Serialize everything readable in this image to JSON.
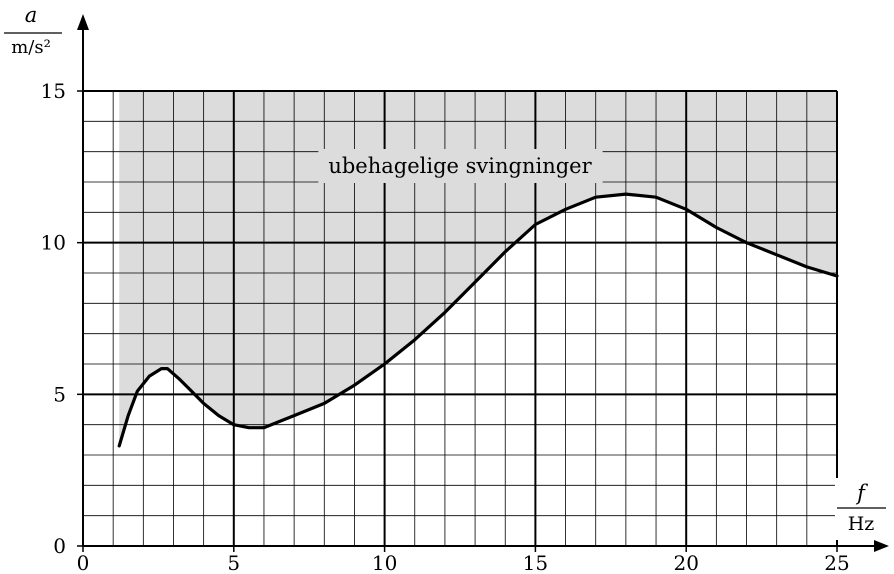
{
  "chart_data": {
    "type": "area",
    "xlabel": {
      "symbol": "f",
      "unit": "Hz"
    },
    "ylabel": {
      "symbol": "a",
      "unit": "m/s²"
    },
    "xlim": [
      0,
      25
    ],
    "ylim": [
      0,
      15
    ],
    "x_ticks": [
      0,
      5,
      10,
      15,
      20,
      25
    ],
    "y_ticks": [
      0,
      5,
      10,
      15
    ],
    "grid": true,
    "minor_step_x": 1,
    "minor_step_y": 1,
    "major_step": 5,
    "annotation": "ubehagelige svingninger",
    "shaded_region": "above curve, from f = 1.2 Hz to 25 Hz",
    "colors": {
      "shade": "#dcdcdc",
      "curve": "#000000",
      "grid": "#000000"
    },
    "series": [
      {
        "x": [
          1.2,
          1.5,
          1.8,
          2.2,
          2.6,
          2.8,
          3.2,
          3.6,
          4.0,
          4.5,
          5.0,
          5.5,
          6.0,
          6.5,
          7.0,
          8.0,
          9.0,
          10.0,
          11.0,
          12.0,
          13.0,
          14.0,
          15.0,
          16.0,
          17.0,
          18.0,
          19.0,
          20.0,
          21.0,
          22.0,
          23.0,
          24.0,
          25.0
        ],
        "y": [
          3.3,
          4.3,
          5.1,
          5.6,
          5.85,
          5.85,
          5.5,
          5.1,
          4.7,
          4.3,
          4.0,
          3.9,
          3.9,
          4.1,
          4.3,
          4.7,
          5.3,
          6.0,
          6.8,
          7.7,
          8.7,
          9.7,
          10.6,
          11.1,
          11.5,
          11.6,
          11.5,
          11.1,
          10.5,
          10.0,
          9.6,
          9.2,
          8.9
        ]
      }
    ]
  }
}
